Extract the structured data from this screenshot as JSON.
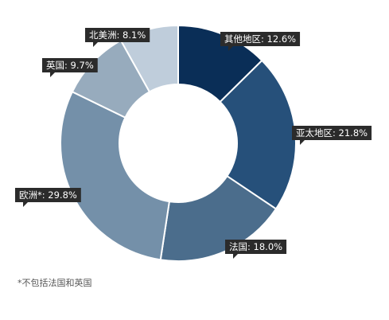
{
  "chart_data": {
    "type": "pie",
    "variant": "donut",
    "categories": [
      "其他地区",
      "亚太地区",
      "法国",
      "欧洲*",
      "英国",
      "北美洲"
    ],
    "values": [
      12.6,
      21.8,
      18.0,
      29.8,
      9.7,
      8.1
    ],
    "labels": [
      "其他地区: 12.6%",
      "亚太地区: 21.8%",
      "法国: 18.0%",
      "欧洲*: 29.8%",
      "英国: 9.7%",
      "北美洲: 8.1%"
    ],
    "colors": [
      "#0a2e57",
      "#26507a",
      "#4b6d8c",
      "#7490a9",
      "#97abbd",
      "#bfcddb"
    ],
    "unit": "%",
    "legend": "none"
  },
  "footnote": "*不包括法国和英国"
}
